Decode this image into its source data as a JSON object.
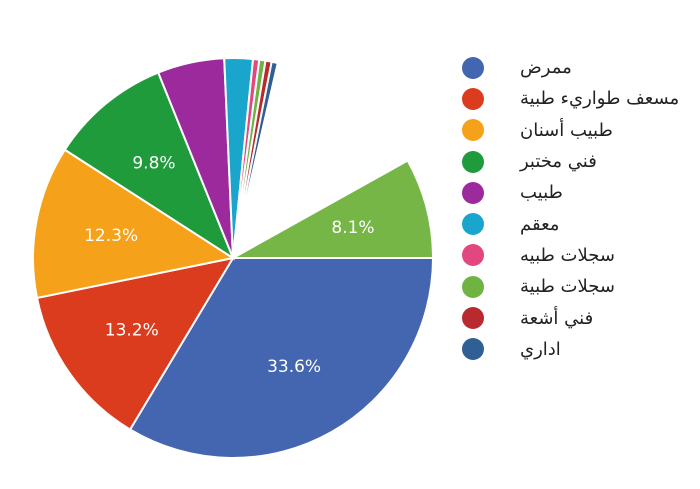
{
  "chart_data": {
    "type": "pie",
    "title": "",
    "legend_position": "right",
    "slices": [
      {
        "label": "ممرض",
        "value": 33.6,
        "value_label": "33.6%",
        "color": "#4466b0"
      },
      {
        "label": "مسعف طواريء طبية",
        "value": 13.2,
        "value_label": "13.2%",
        "color": "#dc3c1e"
      },
      {
        "label": "طبيب أسنان",
        "value": 12.3,
        "value_label": "12.3%",
        "color": "#f6a11a"
      },
      {
        "label": "فني مختبر",
        "value": 9.8,
        "value_label": "9.8%",
        "color": "#1f9b3c"
      },
      {
        "label": "طبيب",
        "value": 5.4,
        "value_label": "",
        "color": "#9c2a9c"
      },
      {
        "label": "معقم",
        "value": 2.3,
        "value_label": "",
        "color": "#1aa6cc"
      },
      {
        "label": "سجلات طبيه",
        "value": 0.5,
        "value_label": "",
        "color": "#e3477f"
      },
      {
        "label": "سجلات طبية",
        "value": 0.5,
        "value_label": "",
        "color": "#6fb343"
      },
      {
        "label": "فني أشعة",
        "value": 0.5,
        "value_label": "",
        "color": "#b82a2e"
      },
      {
        "label": "اداري",
        "value": 0.5,
        "value_label": "",
        "color": "#2f5f94"
      },
      {
        "label": "",
        "value": 13.3,
        "value_label": "",
        "color": "#ffffff"
      },
      {
        "label": "",
        "value": 8.1,
        "value_label": "8.1%",
        "color": "#75b646"
      }
    ]
  },
  "legend": [
    {
      "label": "ممرض",
      "color": "#4466b0"
    },
    {
      "label": "مسعف طواريء طبية",
      "color": "#dc3c1e"
    },
    {
      "label": "طبيب أسنان",
      "color": "#f6a11a"
    },
    {
      "label": "فني مختبر",
      "color": "#1f9b3c"
    },
    {
      "label": "طبيب",
      "color": "#9c2a9c"
    },
    {
      "label": "معقم",
      "color": "#1aa6cc"
    },
    {
      "label": "سجلات طبيه",
      "color": "#e3477f"
    },
    {
      "label": "سجلات طبية",
      "color": "#6fb343"
    },
    {
      "label": "فني أشعة",
      "color": "#b82a2e"
    },
    {
      "label": "اداري",
      "color": "#2f5f94"
    }
  ]
}
